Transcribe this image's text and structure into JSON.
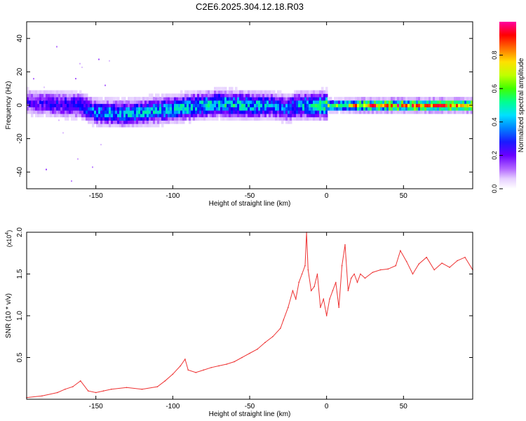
{
  "figure_title": "C2E6.2025.304.12.18.R03",
  "colors": {
    "snr_line": "#ee3333",
    "frame": "#000000",
    "colormap": [
      "#ffffff",
      "#d9b8ff",
      "#7a00ff",
      "#0000ff",
      "#00c8ff",
      "#00ff80",
      "#80ff00",
      "#ffff00",
      "#ff8000",
      "#ff0000",
      "#ff00a0"
    ]
  },
  "chart_data": [
    {
      "type": "heatmap",
      "title": "C2E6.2025.304.12.18.R03",
      "xlabel": "Height of straight line (km)",
      "ylabel": "Frequency (Hz)",
      "xlim": [
        -195,
        95
      ],
      "ylim": [
        -50,
        50
      ],
      "x_ticks": [
        -150,
        -100,
        -50,
        0,
        50
      ],
      "x_tick_labels": [
        "-150",
        "-100",
        "-50",
        "0",
        "50"
      ],
      "y_ticks": [
        -40,
        -20,
        0,
        20,
        40
      ],
      "y_tick_labels": [
        "-40",
        "-20",
        "0",
        "20",
        "40"
      ],
      "colorbar": {
        "label": "Normalized spectral amplitude",
        "range": [
          0,
          1
        ],
        "ticks": [
          0,
          0.2,
          0.4,
          0.6,
          0.8
        ],
        "tick_labels": [
          "0.0",
          "0.2",
          "0.4",
          "0.6",
          "0.8"
        ]
      },
      "signal_track": {
        "description_points_x": [
          -195,
          -180,
          -160,
          -150,
          -130,
          -110,
          -90,
          -70,
          -50,
          -35,
          -25,
          -20,
          -10,
          0,
          10,
          20,
          40,
          60,
          80,
          95
        ],
        "center_hz": [
          2,
          1,
          0,
          -4,
          -5,
          -3,
          -1,
          1,
          0,
          0,
          -2,
          0,
          0,
          0,
          0,
          0,
          0,
          0,
          0,
          0
        ],
        "peak_amplitude": [
          0.25,
          0.3,
          0.35,
          0.4,
          0.45,
          0.45,
          0.5,
          0.5,
          0.5,
          0.4,
          0.4,
          0.45,
          0.5,
          0.6,
          0.6,
          0.85,
          0.9,
          0.92,
          0.9,
          0.9
        ]
      }
    },
    {
      "type": "line",
      "xlabel": "Height of straight line (km)",
      "ylabel": "SNR (10 * v/v)",
      "y_scale_label": "(x10",
      "y_scale_exponent": "4",
      "xlim": [
        -195,
        95
      ],
      "ylim": [
        0,
        2.0
      ],
      "x_ticks": [
        -150,
        -100,
        -50,
        0,
        50
      ],
      "x_tick_labels": [
        "-150",
        "-100",
        "-50",
        "0",
        "50"
      ],
      "y_ticks": [
        0.5,
        1.0,
        1.5,
        2.0
      ],
      "y_tick_labels": [
        "0.5",
        "1.0",
        "1.5",
        "2.0"
      ],
      "series": [
        {
          "name": "SNR",
          "x": [
            -195,
            -185,
            -175,
            -170,
            -165,
            -160,
            -155,
            -150,
            -145,
            -140,
            -130,
            -120,
            -110,
            -105,
            -100,
            -95,
            -92,
            -90,
            -85,
            -80,
            -75,
            -70,
            -65,
            -60,
            -55,
            -50,
            -45,
            -40,
            -35,
            -30,
            -28,
            -25,
            -22,
            -20,
            -18,
            -16,
            -14,
            -13,
            -12,
            -10,
            -8,
            -6,
            -4,
            -2,
            0,
            2,
            4,
            6,
            8,
            10,
            12,
            14,
            16,
            18,
            20,
            22,
            25,
            30,
            35,
            40,
            45,
            48,
            52,
            56,
            60,
            65,
            70,
            75,
            80,
            85,
            90,
            95
          ],
          "y": [
            0.02,
            0.04,
            0.08,
            0.12,
            0.15,
            0.22,
            0.1,
            0.08,
            0.1,
            0.12,
            0.14,
            0.12,
            0.15,
            0.22,
            0.3,
            0.4,
            0.48,
            0.35,
            0.32,
            0.35,
            0.38,
            0.4,
            0.42,
            0.45,
            0.5,
            0.55,
            0.6,
            0.68,
            0.75,
            0.85,
            0.95,
            1.1,
            1.3,
            1.2,
            1.4,
            1.5,
            1.6,
            2.0,
            1.55,
            1.3,
            1.35,
            1.5,
            1.1,
            1.2,
            1.0,
            1.2,
            1.3,
            1.4,
            1.1,
            1.6,
            1.85,
            1.3,
            1.45,
            1.5,
            1.4,
            1.5,
            1.45,
            1.52,
            1.55,
            1.56,
            1.6,
            1.78,
            1.65,
            1.5,
            1.62,
            1.7,
            1.55,
            1.63,
            1.58,
            1.66,
            1.7,
            1.55
          ]
        }
      ]
    }
  ]
}
